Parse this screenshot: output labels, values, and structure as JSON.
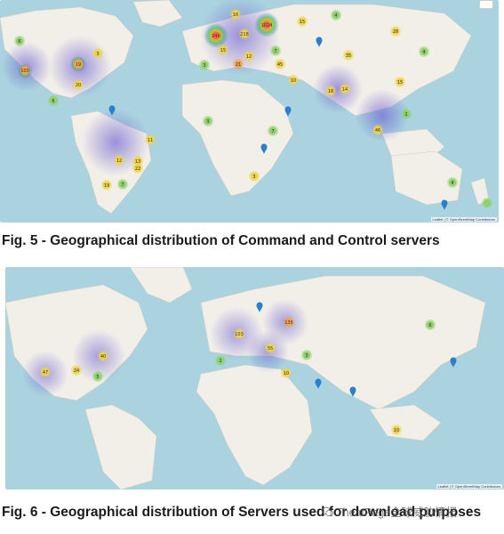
{
  "figures": [
    {
      "caption": "Fig. 5 - Geographical distribution of Command and Control servers",
      "attribution": "Leaflet | © OpenStreetMap Contributors",
      "clusters": [
        {
          "label": "6"
        },
        {
          "label": "100"
        },
        {
          "label": "19"
        },
        {
          "label": "3"
        },
        {
          "label": "20"
        },
        {
          "label": "6"
        },
        {
          "label": "240"
        },
        {
          "label": "218"
        },
        {
          "label": "1024"
        },
        {
          "label": "16"
        },
        {
          "label": "3"
        },
        {
          "label": "15"
        },
        {
          "label": "28"
        },
        {
          "label": "4"
        },
        {
          "label": "4"
        },
        {
          "label": "7"
        },
        {
          "label": "15"
        },
        {
          "label": "12"
        },
        {
          "label": "45"
        },
        {
          "label": "21"
        },
        {
          "label": "35"
        },
        {
          "label": "15"
        },
        {
          "label": "10"
        },
        {
          "label": "18"
        },
        {
          "label": "2"
        },
        {
          "label": "14"
        },
        {
          "label": "3"
        },
        {
          "label": "7"
        },
        {
          "label": "11"
        },
        {
          "label": "46"
        },
        {
          "label": "12"
        },
        {
          "label": "13"
        },
        {
          "label": "22"
        },
        {
          "label": "19"
        },
        {
          "label": "7"
        },
        {
          "label": "3"
        },
        {
          "label": "4"
        }
      ]
    },
    {
      "caption": "Fig. 6 - Geographical distribution of Servers used for download purposes",
      "attribution": "Leaflet | © OpenStreetMap Contributors",
      "clusters": [
        {
          "label": "47"
        },
        {
          "label": "24"
        },
        {
          "label": "40"
        },
        {
          "label": "5"
        },
        {
          "label": "2"
        },
        {
          "label": "103"
        },
        {
          "label": "135"
        },
        {
          "label": "55"
        },
        {
          "label": "6"
        },
        {
          "label": "10"
        },
        {
          "label": "3"
        },
        {
          "label": "10"
        }
      ]
    }
  ],
  "watermark": "TheatPage全球威胁情报",
  "colors": {
    "ocean": "#aad3df",
    "land": "#f2efe9",
    "heat": "#7c6fd6",
    "cluster_green": "#8fd16a",
    "cluster_yellow": "#f0d34a",
    "cluster_orange": "#f3a14a",
    "pin": "#2a81cb"
  }
}
